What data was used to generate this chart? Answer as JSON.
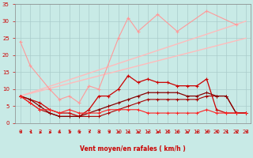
{
  "bg_color": "#c8eae6",
  "grid_color": "#aacccc",
  "xlabel": "Vent moyen/en rafales ( km/h )",
  "xlim": [
    -0.5,
    23.5
  ],
  "ylim": [
    0,
    35
  ],
  "yticks": [
    0,
    5,
    10,
    15,
    20,
    25,
    30,
    35
  ],
  "x_ticks": [
    0,
    1,
    2,
    3,
    4,
    5,
    6,
    7,
    8,
    9,
    10,
    11,
    12,
    13,
    14,
    15,
    16,
    17,
    18,
    19,
    20,
    21,
    22,
    23
  ],
  "trend1_x": [
    0,
    23
  ],
  "trend1_y": [
    8.0,
    30.0
  ],
  "trend2_x": [
    0,
    23
  ],
  "trend2_y": [
    8.0,
    25.0
  ],
  "pink_x": [
    0,
    1,
    3,
    4,
    5,
    6,
    7,
    8,
    10,
    11,
    12,
    14,
    16,
    19,
    22
  ],
  "pink_y": [
    24,
    17,
    10,
    7,
    8,
    6,
    11,
    10,
    25,
    31,
    27,
    32,
    27,
    33,
    29
  ],
  "dark1_x": [
    0,
    1,
    2,
    3,
    4,
    5,
    6,
    7,
    8,
    9,
    10,
    11,
    12,
    13,
    14,
    15,
    16,
    17,
    18,
    19,
    20,
    21,
    22,
    23
  ],
  "dark1_y": [
    8,
    7,
    6,
    4,
    3,
    3,
    2,
    4,
    8,
    8,
    10,
    14,
    12,
    13,
    12,
    12,
    11,
    11,
    11,
    13,
    4,
    3,
    3,
    3
  ],
  "dark2_x": [
    0,
    1,
    2,
    3,
    4,
    5,
    6,
    7,
    8,
    9,
    10,
    11,
    12,
    13,
    14,
    15,
    16,
    17,
    18,
    19,
    20,
    21,
    22,
    23
  ],
  "dark2_y": [
    8,
    7,
    5,
    3,
    2,
    2,
    2,
    3,
    4,
    5,
    6,
    7,
    8,
    9,
    9,
    9,
    9,
    8,
    8,
    9,
    8,
    8,
    3,
    3
  ],
  "dark3_x": [
    0,
    1,
    2,
    3,
    4,
    5,
    6,
    7,
    8,
    9,
    10,
    11,
    12,
    13,
    14,
    15,
    16,
    17,
    18,
    19,
    20,
    21,
    22,
    23
  ],
  "dark3_y": [
    8,
    6,
    4,
    4,
    3,
    4,
    3,
    3,
    3,
    4,
    4,
    4,
    4,
    3,
    3,
    3,
    3,
    3,
    3,
    4,
    3,
    3,
    3,
    3
  ],
  "dark4_x": [
    0,
    1,
    2,
    3,
    4,
    5,
    6,
    7,
    8,
    9,
    10,
    11,
    12,
    13,
    14,
    15,
    16,
    17,
    18,
    19,
    20,
    21,
    22,
    23
  ],
  "dark4_y": [
    8,
    6,
    4,
    3,
    2,
    2,
    2,
    2,
    2,
    3,
    4,
    5,
    6,
    7,
    7,
    7,
    7,
    7,
    7,
    8,
    8,
    8,
    3,
    3
  ],
  "arrow_angles": [
    270,
    270,
    225,
    225,
    202,
    247,
    247,
    270,
    270,
    270,
    247,
    247,
    247,
    247,
    247,
    270,
    247,
    247,
    247,
    270,
    270,
    270,
    270,
    270
  ]
}
